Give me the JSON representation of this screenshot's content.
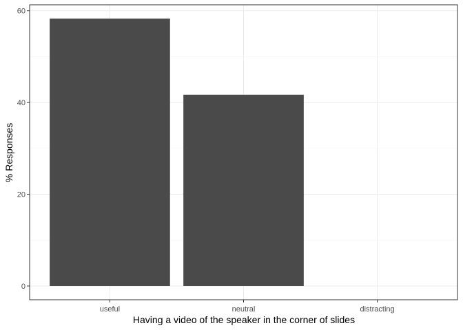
{
  "chart_data": {
    "type": "bar",
    "categories": [
      "useful",
      "neutral",
      "distracting"
    ],
    "values": [
      58.3,
      41.7,
      0
    ],
    "xlabel": "Having a video of the speaker in the corner of slides",
    "ylabel": "% Responses",
    "ylim": [
      -3,
      61.3
    ],
    "yticks": [
      0,
      20,
      40,
      60
    ],
    "grid": true,
    "legend": "none",
    "theme": "bw",
    "colors": {
      "bar": "#4a4a4a",
      "grid_major": "#ebebeb",
      "grid_minor": "#f5f5f5",
      "panel_border": "#333333"
    }
  }
}
